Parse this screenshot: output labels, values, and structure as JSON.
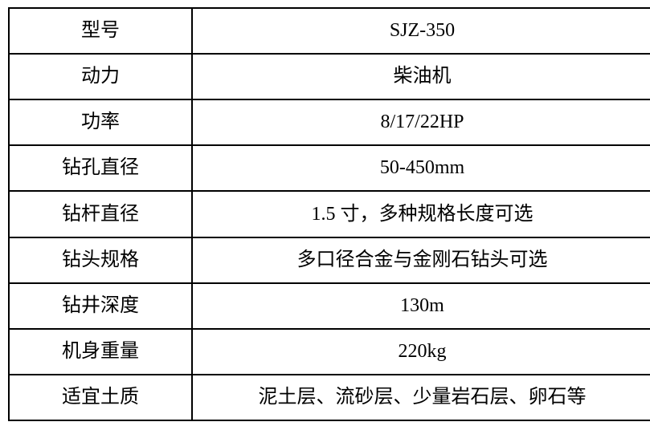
{
  "table": {
    "name": "product-specification-table",
    "columns": [
      "label",
      "value"
    ],
    "rows": [
      {
        "label": "型号",
        "value": "SJZ-350"
      },
      {
        "label": "动力",
        "value": "柴油机"
      },
      {
        "label": "功率",
        "value": "8/17/22HP"
      },
      {
        "label": "钻孔直径",
        "value": "50-450mm"
      },
      {
        "label": "钻杆直径",
        "value": "1.5 寸，多种规格长度可选"
      },
      {
        "label": "钻头规格",
        "value": "多口径合金与金刚石钻头可选"
      },
      {
        "label": "钻井深度",
        "value": "130m"
      },
      {
        "label": "机身重量",
        "value": "220kg"
      },
      {
        "label": "适宜土质",
        "value": "泥土层、流砂层、少量岩石层、卵石等"
      }
    ],
    "colors": {
      "border": "#000000",
      "background": "#ffffff",
      "text": "#000000"
    }
  }
}
